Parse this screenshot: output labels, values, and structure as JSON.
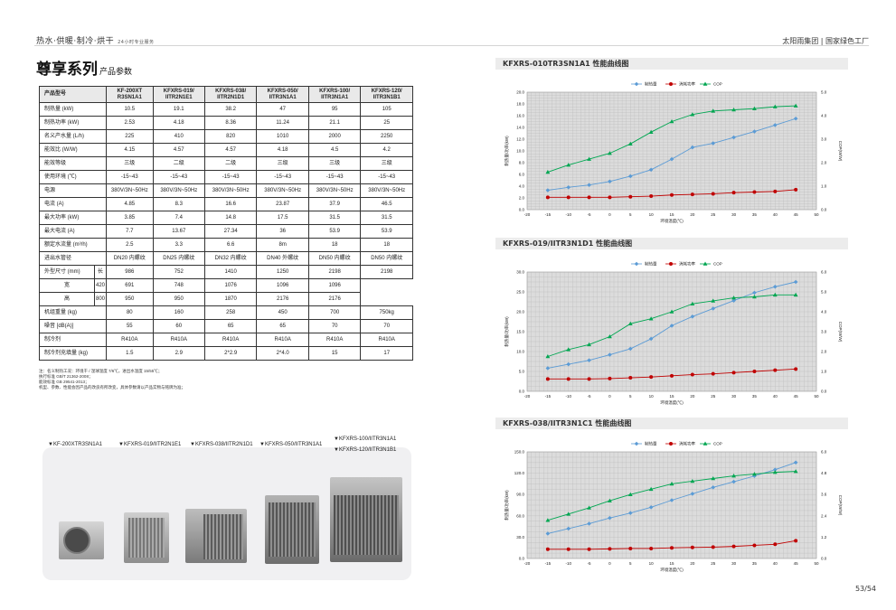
{
  "header": {
    "left": "热水·供暖·制冷·烘干",
    "left_small": "24小时专业服务",
    "right": "太阳雨集团 | 国家绿色工厂"
  },
  "title": {
    "main": "尊享系列",
    "sub": "产品参数"
  },
  "table": {
    "headers": [
      "产品型号",
      "KF-200XT R3SN1A1",
      "KFXRS-019/ IITR2N1E1",
      "KFXRS-038/ IITR2N1D1",
      "KFXRS-050/ IITR3N1A1",
      "KFXRS-100/ IITR3N1A1",
      "KFXRS-120/ IITR3N1B1"
    ],
    "rows": [
      {
        "label": "制热量 (kW)",
        "values": [
          "10.5",
          "19.1",
          "38.2",
          "47",
          "95",
          "105"
        ]
      },
      {
        "label": "制热功率 (kW)",
        "values": [
          "2.53",
          "4.18",
          "8.36",
          "11.24",
          "21.1",
          "25"
        ]
      },
      {
        "label": "名义产水量 (L/h)",
        "values": [
          "225",
          "410",
          "820",
          "1010",
          "2000",
          "2250"
        ]
      },
      {
        "label": "能效比 (W/W)",
        "values": [
          "4.15",
          "4.57",
          "4.57",
          "4.18",
          "4.5",
          "4.2"
        ]
      },
      {
        "label": "能效等级",
        "values": [
          "三级",
          "二级",
          "二级",
          "三级",
          "三级",
          "三级"
        ]
      },
      {
        "label": "使用环境 (℃)",
        "values": [
          "-15~43",
          "-15~43",
          "-15~43",
          "-15~43",
          "-15~43",
          "-15~43"
        ]
      },
      {
        "label": "电源",
        "values": [
          "380V/3N~50Hz",
          "380V/3N~50Hz",
          "380V/3N~50Hz",
          "380V/3N~50Hz",
          "380V/3N~50Hz",
          "380V/3N~50Hz"
        ]
      },
      {
        "label": "电流 (A)",
        "values": [
          "4.85",
          "8.3",
          "16.6",
          "23.87",
          "37.9",
          "46.5"
        ]
      },
      {
        "label": "最大功率 (kW)",
        "values": [
          "3.85",
          "7.4",
          "14.8",
          "17.5",
          "31.5",
          "31.5"
        ]
      },
      {
        "label": "最大电流 (A)",
        "values": [
          "7.7",
          "13.67",
          "27.34",
          "36",
          "53.9",
          "53.9"
        ]
      },
      {
        "label": "额定水流量 (m³/h)",
        "values": [
          "2.5",
          "3.3",
          "6.6",
          "8m",
          "18",
          "18"
        ]
      },
      {
        "label": "进出水管径",
        "values": [
          "DN20 内螺纹",
          "DN25 内螺纹",
          "DN32 内螺纹",
          "DN40 外螺纹",
          "DN50 内螺纹",
          "DN50 内螺纹"
        ]
      }
    ],
    "dims_label": "外型尺寸 (mm)",
    "dims": [
      {
        "sub": "长",
        "values": [
          "986",
          "752",
          "1410",
          "1250",
          "2198",
          "2198"
        ]
      },
      {
        "sub": "宽",
        "values": [
          "420",
          "691",
          "748",
          "1076",
          "1096",
          "1096"
        ]
      },
      {
        "sub": "高",
        "values": [
          "800",
          "950",
          "950",
          "1870",
          "2176",
          "2176"
        ]
      }
    ],
    "rows2": [
      {
        "label": "机组重量 (kg)",
        "values": [
          "80",
          "160",
          "258",
          "450",
          "700",
          "750kg"
        ]
      },
      {
        "label": "噪音 [dB(A)]",
        "values": [
          "55",
          "60",
          "65",
          "65",
          "70",
          "70"
        ]
      },
      {
        "label": "制冷剂",
        "values": [
          "R410A",
          "R410A",
          "R410A",
          "R410A",
          "R410A",
          "R410A"
        ]
      },
      {
        "label": "制冷剂充填量 (kg)",
        "values": [
          "1.5",
          "2.9",
          "2*2.9",
          "2*4.0",
          "15",
          "17"
        ]
      }
    ]
  },
  "notes": [
    "注：名义制热工况：环境干 / 湿球温度 7/6℃，进出水温度 15/55℃；",
    "执行标准 GB/T 21362-2008；",
    "能效标准 GB 29541-2013；",
    "机型、参数、性能会因产品的改良有所改变，具体参数请以产品实物与铭牌为准；"
  ],
  "product_labels": [
    "▼KF-200XTR3SN1A1",
    "▼KFXRS-019/IITR2N1E1",
    "▼KFXRS-038/IITR2N1D1",
    "▼KFXRS-050/IITR3N1A1",
    "▼KFXRS-100/IITR3N1A1",
    "▼KFXRS-120/IITR3N1B1"
  ],
  "charts": [
    {
      "title": "KFXRS-010TR3SN1A1 性能曲线图",
      "legend": [
        "制热量",
        "消耗功率",
        "COP"
      ],
      "xlabel": "环境温度(℃)",
      "ylabel_left": "制热量/功率(kW)",
      "ylabel_right": "COP(W/W)",
      "x": [
        -15,
        -10,
        -5,
        0,
        5,
        10,
        15,
        20,
        25,
        30,
        35,
        40,
        45
      ],
      "xticks": [
        "-20",
        "-15",
        "-10",
        "-5",
        "0",
        "5",
        "10",
        "15",
        "20",
        "25",
        "30",
        "35",
        "40",
        "45",
        "50"
      ],
      "ylim": [
        0,
        20
      ],
      "yticks": [
        "0.0",
        "2.0",
        "4.0",
        "6.0",
        "8.0",
        "10.0",
        "12.0",
        "14.0",
        "16.0",
        "18.0",
        "20.0"
      ],
      "ylim_r": [
        0,
        5
      ],
      "yticks_r": [
        "0.0",
        "1.0",
        "2.0",
        "3.0",
        "4.0",
        "5.0"
      ],
      "heat": [
        3.3,
        3.8,
        4.2,
        4.8,
        5.7,
        6.8,
        8.6,
        10.6,
        11.3,
        12.3,
        13.3,
        14.4,
        15.5
      ],
      "power": [
        2.1,
        2.1,
        2.1,
        2.1,
        2.2,
        2.3,
        2.5,
        2.6,
        2.7,
        2.9,
        3.0,
        3.1,
        3.4
      ],
      "cop": [
        1.6,
        1.9,
        2.15,
        2.4,
        2.8,
        3.3,
        3.75,
        4.05,
        4.2,
        4.25,
        4.3,
        4.38,
        4.42
      ]
    },
    {
      "title": "KFXRS-019/IITR3N1D1 性能曲线图",
      "legend": [
        "制热量",
        "消耗功率",
        "COP"
      ],
      "xlabel": "环境温度(℃)",
      "ylabel_left": "制热量/功率(kW)",
      "ylabel_right": "COP(W/W)",
      "x": [
        -15,
        -10,
        -5,
        0,
        5,
        10,
        15,
        20,
        25,
        30,
        35,
        40,
        45
      ],
      "xticks": [
        "-20",
        "-15",
        "-10",
        "-5",
        "0",
        "5",
        "10",
        "15",
        "20",
        "25",
        "30",
        "35",
        "40",
        "45",
        "50"
      ],
      "ylim": [
        0,
        30
      ],
      "yticks": [
        "0.0",
        "5.0",
        "10.0",
        "15.0",
        "20.0",
        "25.0",
        "30.0"
      ],
      "ylim_r": [
        0,
        6
      ],
      "yticks_r": [
        "0.0",
        "1.0",
        "2.0",
        "3.0",
        "4.0",
        "5.0",
        "6.0"
      ],
      "heat": [
        5.8,
        6.8,
        7.8,
        9.2,
        10.7,
        13.2,
        16.5,
        18.8,
        20.8,
        22.8,
        24.8,
        26.3,
        27.5
      ],
      "power": [
        3.1,
        3.1,
        3.1,
        3.2,
        3.4,
        3.6,
        3.9,
        4.2,
        4.4,
        4.7,
        5.0,
        5.3,
        5.6
      ],
      "cop": [
        1.75,
        2.1,
        2.35,
        2.75,
        3.4,
        3.65,
        4.0,
        4.4,
        4.55,
        4.7,
        4.75,
        4.85,
        4.85
      ]
    },
    {
      "title": "KFXRS-038/IITR3N1C1 性能曲线图",
      "legend": [
        "制热量",
        "消耗功率",
        "COP"
      ],
      "xlabel": "环境温度(℃)",
      "ylabel_left": "制热量/功率(kW)",
      "ylabel_right": "COP(W/W)",
      "x": [
        -15,
        -10,
        -5,
        0,
        5,
        10,
        15,
        20,
        25,
        30,
        35,
        40,
        45
      ],
      "xticks": [
        "-20",
        "-15",
        "-10",
        "-5",
        "0",
        "5",
        "10",
        "15",
        "20",
        "25",
        "30",
        "35",
        "40",
        "45",
        "50"
      ],
      "ylim": [
        0,
        150
      ],
      "yticks": [
        "0.0",
        "30.0",
        "60.0",
        "90.0",
        "120.0",
        "150.0"
      ],
      "ylim_r": [
        0,
        6
      ],
      "yticks_r": [
        "0.0",
        "1.2",
        "2.4",
        "3.6",
        "4.8",
        "6.0"
      ],
      "heat": [
        35,
        42,
        49,
        57,
        64,
        72,
        82,
        91,
        100,
        108,
        116,
        125,
        135
      ],
      "power": [
        13,
        13,
        13,
        13.5,
        14,
        14,
        15,
        15.5,
        16,
        17,
        18.5,
        20,
        25
      ],
      "cop": [
        2.15,
        2.5,
        2.85,
        3.25,
        3.6,
        3.9,
        4.2,
        4.35,
        4.5,
        4.65,
        4.75,
        4.85,
        4.9
      ]
    }
  ],
  "colors": {
    "heat": "#5b9bd5",
    "power": "#c00000",
    "cop": "#00a651",
    "grid": "#b0b0b0",
    "plot_bg": "#dcdcdc"
  },
  "page": "53/54"
}
